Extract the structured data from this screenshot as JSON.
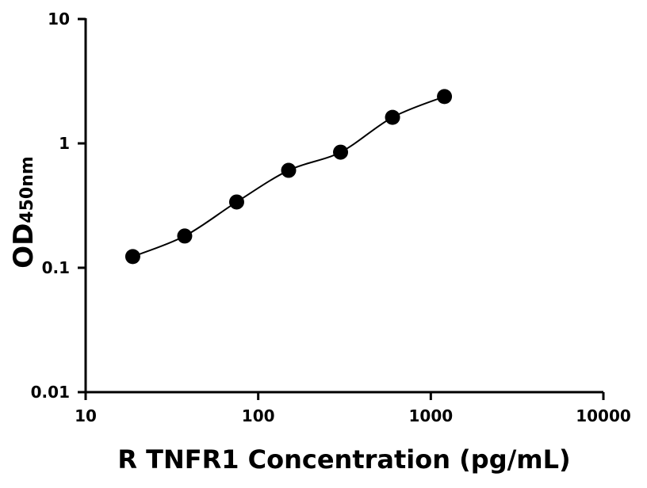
{
  "chart_data": {
    "type": "scatter",
    "title": "",
    "xlabel": "R TNFR1 Concentration (pg/mL)",
    "ylabel": "OD",
    "ylabel_subscript": "450nm",
    "xscale": "log",
    "yscale": "log",
    "xlim": [
      10,
      10000
    ],
    "ylim": [
      0.01,
      10
    ],
    "xticks": [
      "10",
      "100",
      "1000",
      "10000"
    ],
    "yticks": [
      "0.01",
      "0.1",
      "1",
      "10"
    ],
    "grid": false,
    "fit_curve": true,
    "series": [
      {
        "x": [
          18.75,
          37.5,
          75,
          150,
          300,
          600,
          1200
        ],
        "y": [
          0.123,
          0.18,
          0.338,
          0.607,
          0.85,
          1.62,
          2.38
        ]
      }
    ],
    "colors": {
      "marker": "#000000",
      "line": "#000000"
    }
  }
}
